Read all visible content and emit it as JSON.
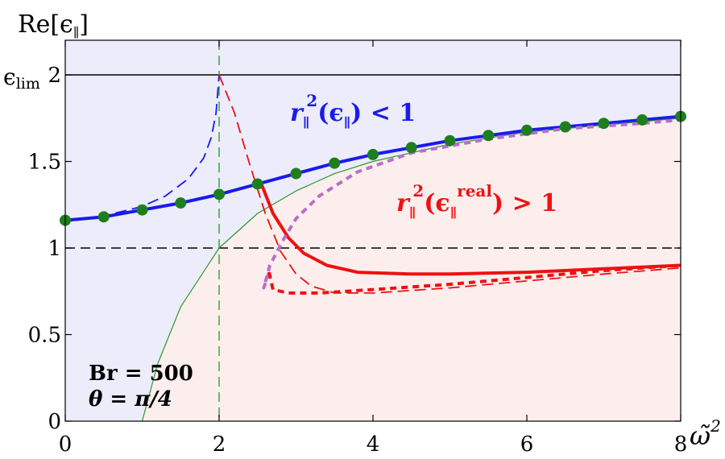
{
  "chart_data": {
    "type": "line",
    "ylabel": "Re[ϵ",
    "ylabel_sub": "∥",
    "ylabel_close": "]",
    "xlabel": "ω̃",
    "xlabel_sup": "2",
    "xlim": [
      0,
      8
    ],
    "ylim": [
      0,
      2.2
    ],
    "x_ticks": [
      {
        "value": 0,
        "label": "0"
      },
      {
        "value": 2,
        "label": "2"
      },
      {
        "value": 4,
        "label": "4"
      },
      {
        "value": 6,
        "label": "6"
      },
      {
        "value": 8,
        "label": "8"
      }
    ],
    "y_ticks": [
      {
        "value": 0,
        "label": "0"
      },
      {
        "value": 0.5,
        "label": "0.5"
      },
      {
        "value": 1,
        "label": "1"
      },
      {
        "value": 1.5,
        "label": "1.5"
      },
      {
        "value": 2,
        "label": "2"
      }
    ],
    "eps_lim_label": "ϵ",
    "eps_lim_sub": "lim",
    "reference_lines": [
      {
        "axis": "y",
        "value": 2,
        "style": "solid",
        "color": "#000000"
      },
      {
        "axis": "y",
        "value": 1,
        "style": "dashed",
        "color": "#000000"
      },
      {
        "axis": "x",
        "value": 2,
        "style": "dashed",
        "color": "#2ca02c"
      }
    ],
    "regions": {
      "upper_color": "#ececfb",
      "lower_color": "#fdeeee"
    },
    "annotations": {
      "blue": {
        "r": "r",
        "r_sub": "∥",
        "r_sup": "2",
        "eps": "ϵ",
        "eps_sub": "∥",
        "ineq": "< 1",
        "color": "#1a1aee"
      },
      "red": {
        "r": "r",
        "r_sub": "∥",
        "r_sup": "2",
        "eps": "ϵ",
        "eps_sub": "∥",
        "eps_sup": "real",
        "ineq": "> 1",
        "color": "#ee1111"
      },
      "params": [
        "Br = 500",
        "θ = π/4"
      ]
    },
    "series": [
      {
        "style": "blue-solid",
        "color": "#1a1aee",
        "points": [
          [
            0,
            1.16
          ],
          [
            0.5,
            1.18
          ],
          [
            1,
            1.22
          ],
          [
            1.5,
            1.26
          ],
          [
            2,
            1.31
          ],
          [
            2.5,
            1.37
          ],
          [
            3,
            1.43
          ],
          [
            3.5,
            1.49
          ],
          [
            4,
            1.54
          ],
          [
            4.5,
            1.58
          ],
          [
            5,
            1.62
          ],
          [
            5.5,
            1.65
          ],
          [
            6,
            1.68
          ],
          [
            6.5,
            1.7
          ],
          [
            7,
            1.72
          ],
          [
            7.5,
            1.74
          ],
          [
            8,
            1.76
          ]
        ]
      },
      {
        "style": "green-markers",
        "color": "#1e7e1e",
        "points": [
          [
            0,
            1.16
          ],
          [
            0.5,
            1.18
          ],
          [
            1,
            1.22
          ],
          [
            1.5,
            1.26
          ],
          [
            2,
            1.31
          ],
          [
            2.5,
            1.37
          ],
          [
            3,
            1.43
          ],
          [
            3.5,
            1.49
          ],
          [
            4,
            1.54
          ],
          [
            4.5,
            1.58
          ],
          [
            5,
            1.62
          ],
          [
            5.5,
            1.65
          ],
          [
            6,
            1.68
          ],
          [
            6.5,
            1.7
          ],
          [
            7,
            1.72
          ],
          [
            7.5,
            1.74
          ],
          [
            8,
            1.76
          ]
        ]
      },
      {
        "style": "blue-dashed",
        "color": "#1a1aee",
        "points": [
          [
            0,
            1.16
          ],
          [
            0.5,
            1.185
          ],
          [
            1,
            1.24
          ],
          [
            1.3,
            1.3
          ],
          [
            1.6,
            1.4
          ],
          [
            1.8,
            1.52
          ],
          [
            1.9,
            1.64
          ],
          [
            1.96,
            1.78
          ],
          [
            2,
            2.0
          ]
        ]
      },
      {
        "style": "green-thin",
        "color": "#2a9a2a",
        "points": [
          [
            1.0,
            0
          ],
          [
            1.2,
            0.33
          ],
          [
            1.5,
            0.66
          ],
          [
            2,
            1.0
          ],
          [
            2.5,
            1.2
          ],
          [
            3,
            1.33
          ],
          [
            3.5,
            1.43
          ],
          [
            4,
            1.5
          ],
          [
            5,
            1.6
          ],
          [
            6,
            1.67
          ],
          [
            7,
            1.71
          ],
          [
            8,
            1.75
          ]
        ]
      },
      {
        "style": "red-dashed-thin",
        "color": "#ee1111",
        "points": [
          [
            2,
            2.0
          ],
          [
            2.2,
            1.78
          ],
          [
            2.4,
            1.48
          ],
          [
            2.6,
            1.2
          ],
          [
            2.8,
            0.98
          ],
          [
            3,
            0.85
          ],
          [
            3.2,
            0.78
          ],
          [
            3.5,
            0.74
          ],
          [
            4,
            0.74
          ],
          [
            5,
            0.77
          ],
          [
            6,
            0.81
          ],
          [
            7,
            0.85
          ],
          [
            8,
            0.885
          ]
        ]
      },
      {
        "style": "red-solid",
        "color": "#ee1111",
        "points": [
          [
            2.55,
            1.37
          ],
          [
            2.7,
            1.2
          ],
          [
            2.9,
            1.06
          ],
          [
            3.1,
            0.97
          ],
          [
            3.4,
            0.9
          ],
          [
            3.8,
            0.86
          ],
          [
            4.5,
            0.85
          ],
          [
            5,
            0.85
          ],
          [
            6,
            0.86
          ],
          [
            7,
            0.88
          ],
          [
            8,
            0.9
          ]
        ]
      },
      {
        "style": "purple-dotted",
        "color": "#b86fc8",
        "points": [
          [
            2.65,
            0.86
          ],
          [
            2.58,
            0.77
          ],
          [
            2.66,
            0.9
          ],
          [
            2.85,
            1.06
          ],
          [
            3.0,
            1.17
          ],
          [
            3.3,
            1.3
          ],
          [
            3.8,
            1.44
          ],
          [
            4.5,
            1.55
          ],
          [
            5.5,
            1.63
          ],
          [
            6.5,
            1.69
          ],
          [
            7.5,
            1.72
          ],
          [
            8,
            1.74
          ]
        ]
      },
      {
        "style": "red-dotted",
        "color": "#ee1111",
        "points": [
          [
            2.65,
            0.86
          ],
          [
            2.7,
            0.76
          ],
          [
            2.9,
            0.74
          ],
          [
            3.3,
            0.74
          ],
          [
            4,
            0.76
          ],
          [
            5,
            0.79
          ],
          [
            6,
            0.83
          ],
          [
            7,
            0.87
          ],
          [
            8,
            0.9
          ]
        ]
      }
    ]
  }
}
